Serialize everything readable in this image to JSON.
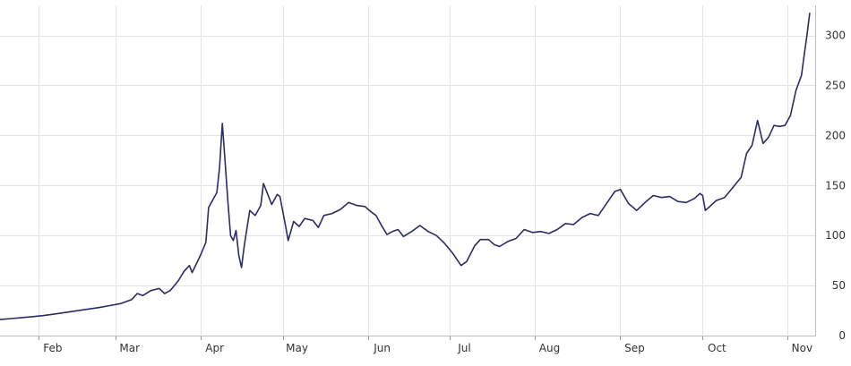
{
  "chart_data": {
    "type": "line",
    "title": "",
    "xlabel": "",
    "ylabel": "",
    "grid": true,
    "legend": "none",
    "line_color": "#2b2b66",
    "xlim": [
      "2013-01-18",
      "2013-11-11"
    ],
    "ylim": [
      0,
      330
    ],
    "y_ticks": [
      0,
      50,
      100,
      150,
      200,
      250,
      300
    ],
    "y_tick_labels": [
      "0",
      "50",
      "100",
      "150",
      "200",
      "250",
      "300"
    ],
    "x_ticks": [
      {
        "label": "Feb",
        "date": "2013-02-01"
      },
      {
        "label": "Mar",
        "date": "2013-03-01"
      },
      {
        "label": "Apr",
        "date": "2013-04-01"
      },
      {
        "label": "May",
        "date": "2013-05-01"
      },
      {
        "label": "Jun",
        "date": "2013-06-01"
      },
      {
        "label": "Jul",
        "date": "2013-07-01"
      },
      {
        "label": "Aug",
        "date": "2013-08-01"
      },
      {
        "label": "Sep",
        "date": "2013-09-01"
      },
      {
        "label": "Oct",
        "date": "2013-10-01"
      },
      {
        "label": "Nov",
        "date": "2013-11-01"
      }
    ],
    "series": [
      {
        "data": [
          [
            "2013-01-18",
            16
          ],
          [
            "2013-01-22",
            17
          ],
          [
            "2013-01-26",
            18
          ],
          [
            "2013-01-30",
            19
          ],
          [
            "2013-02-03",
            20
          ],
          [
            "2013-02-08",
            22
          ],
          [
            "2013-02-13",
            24
          ],
          [
            "2013-02-18",
            26
          ],
          [
            "2013-02-23",
            28
          ],
          [
            "2013-02-27",
            30
          ],
          [
            "2013-03-03",
            32
          ],
          [
            "2013-03-07",
            36
          ],
          [
            "2013-03-09",
            42
          ],
          [
            "2013-03-11",
            40
          ],
          [
            "2013-03-14",
            45
          ],
          [
            "2013-03-17",
            47
          ],
          [
            "2013-03-19",
            42
          ],
          [
            "2013-03-21",
            45
          ],
          [
            "2013-03-24",
            55
          ],
          [
            "2013-03-26",
            64
          ],
          [
            "2013-03-28",
            70
          ],
          [
            "2013-03-29",
            63
          ],
          [
            "2013-04-01",
            80
          ],
          [
            "2013-04-03",
            93
          ],
          [
            "2013-04-04",
            128
          ],
          [
            "2013-04-06",
            138
          ],
          [
            "2013-04-07",
            143
          ],
          [
            "2013-04-08",
            168
          ],
          [
            "2013-04-09",
            212
          ],
          [
            "2013-04-10",
            175
          ],
          [
            "2013-04-11",
            135
          ],
          [
            "2013-04-12",
            100
          ],
          [
            "2013-04-13",
            95
          ],
          [
            "2013-04-14",
            105
          ],
          [
            "2013-04-15",
            80
          ],
          [
            "2013-04-16",
            68
          ],
          [
            "2013-04-17",
            90
          ],
          [
            "2013-04-19",
            125
          ],
          [
            "2013-04-21",
            120
          ],
          [
            "2013-04-23",
            130
          ],
          [
            "2013-04-24",
            152
          ],
          [
            "2013-04-26",
            138
          ],
          [
            "2013-04-27",
            131
          ],
          [
            "2013-04-29",
            141
          ],
          [
            "2013-04-30",
            139
          ],
          [
            "2013-05-02",
            110
          ],
          [
            "2013-05-03",
            95
          ],
          [
            "2013-05-05",
            114
          ],
          [
            "2013-05-07",
            109
          ],
          [
            "2013-05-09",
            117
          ],
          [
            "2013-05-12",
            115
          ],
          [
            "2013-05-14",
            108
          ],
          [
            "2013-05-16",
            120
          ],
          [
            "2013-05-19",
            122
          ],
          [
            "2013-05-22",
            126
          ],
          [
            "2013-05-25",
            133
          ],
          [
            "2013-05-28",
            130
          ],
          [
            "2013-05-31",
            129
          ],
          [
            "2013-06-02",
            124
          ],
          [
            "2013-06-04",
            120
          ],
          [
            "2013-06-06",
            110
          ],
          [
            "2013-06-08",
            101
          ],
          [
            "2013-06-10",
            104
          ],
          [
            "2013-06-12",
            106
          ],
          [
            "2013-06-14",
            99
          ],
          [
            "2013-06-17",
            104
          ],
          [
            "2013-06-20",
            110
          ],
          [
            "2013-06-23",
            104
          ],
          [
            "2013-06-26",
            100
          ],
          [
            "2013-06-29",
            92
          ],
          [
            "2013-07-02",
            82
          ],
          [
            "2013-07-05",
            70
          ],
          [
            "2013-07-07",
            74
          ],
          [
            "2013-07-10",
            90
          ],
          [
            "2013-07-12",
            96
          ],
          [
            "2013-07-15",
            96
          ],
          [
            "2013-07-17",
            91
          ],
          [
            "2013-07-19",
            89
          ],
          [
            "2013-07-22",
            94
          ],
          [
            "2013-07-25",
            97
          ],
          [
            "2013-07-28",
            106
          ],
          [
            "2013-07-31",
            103
          ],
          [
            "2013-08-03",
            104
          ],
          [
            "2013-08-06",
            102
          ],
          [
            "2013-08-09",
            106
          ],
          [
            "2013-08-12",
            112
          ],
          [
            "2013-08-15",
            111
          ],
          [
            "2013-08-18",
            118
          ],
          [
            "2013-08-21",
            122
          ],
          [
            "2013-08-24",
            120
          ],
          [
            "2013-08-27",
            132
          ],
          [
            "2013-08-30",
            144
          ],
          [
            "2013-09-01",
            146
          ],
          [
            "2013-09-04",
            132
          ],
          [
            "2013-09-07",
            125
          ],
          [
            "2013-09-10",
            133
          ],
          [
            "2013-09-13",
            140
          ],
          [
            "2013-09-16",
            138
          ],
          [
            "2013-09-19",
            139
          ],
          [
            "2013-09-22",
            134
          ],
          [
            "2013-09-25",
            133
          ],
          [
            "2013-09-28",
            137
          ],
          [
            "2013-09-30",
            142
          ],
          [
            "2013-10-01",
            140
          ],
          [
            "2013-10-02",
            125
          ],
          [
            "2013-10-04",
            130
          ],
          [
            "2013-10-06",
            135
          ],
          [
            "2013-10-09",
            138
          ],
          [
            "2013-10-12",
            148
          ],
          [
            "2013-10-15",
            158
          ],
          [
            "2013-10-17",
            182
          ],
          [
            "2013-10-19",
            190
          ],
          [
            "2013-10-21",
            215
          ],
          [
            "2013-10-23",
            192
          ],
          [
            "2013-10-25",
            198
          ],
          [
            "2013-10-27",
            210
          ],
          [
            "2013-10-29",
            209
          ],
          [
            "2013-10-31",
            210
          ],
          [
            "2013-11-02",
            220
          ],
          [
            "2013-11-04",
            245
          ],
          [
            "2013-11-06",
            260
          ],
          [
            "2013-11-07",
            280
          ],
          [
            "2013-11-08",
            300
          ],
          [
            "2013-11-09",
            322
          ]
        ]
      }
    ]
  }
}
